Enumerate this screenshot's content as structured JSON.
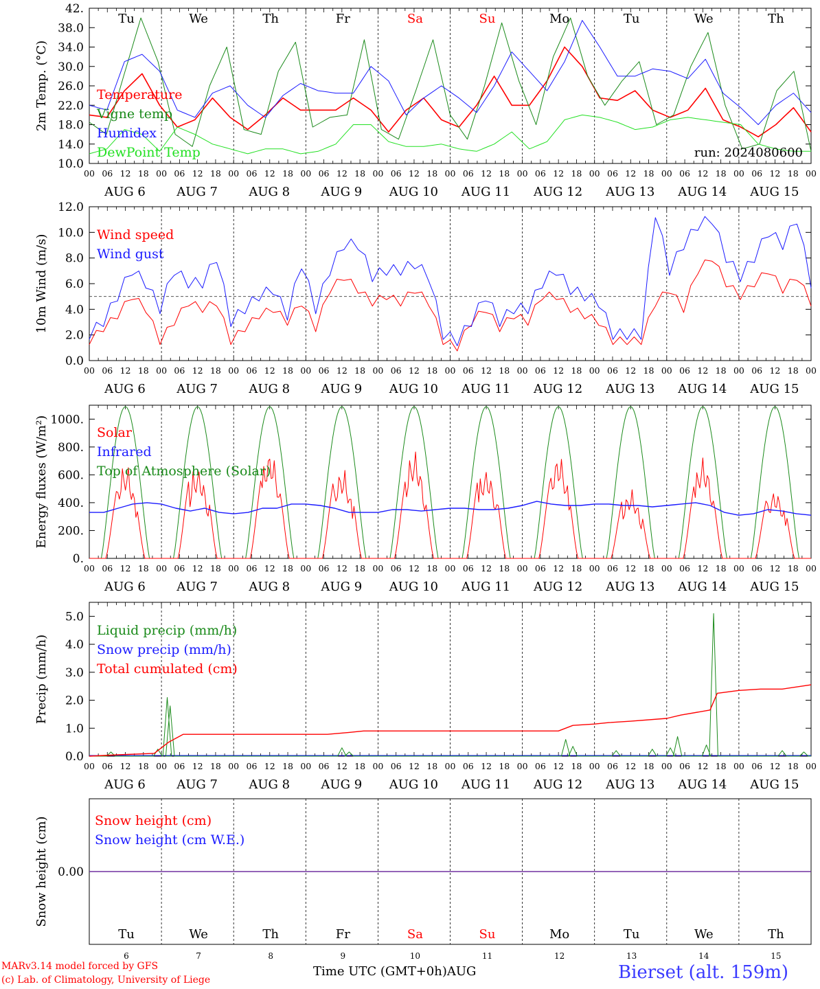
{
  "footer": {
    "credit_model": "MARv3.14 model forced by GFS",
    "credit_lab": "(c) Lab. of Climatology, University of Liege",
    "x_axis_title": "Time UTC (GMT+0h)AUG",
    "station": "Bierset (alt. 159m)"
  },
  "colors": {
    "red": "#ff0000",
    "dark_green": "#1a8a1a",
    "blue": "#1a1aff",
    "light_green": "#22e022",
    "purple": "#7030a0",
    "day_weekend": "#ff0000"
  },
  "chart_data": [
    {
      "type": "line",
      "ylabel": "2m Temp. (°C)",
      "ylim": [
        10,
        42
      ],
      "yticks": [
        "42.",
        "38.0",
        "34.0",
        "30.0",
        "26.0",
        "22.0",
        "18.0",
        "14.0",
        "10.0"
      ],
      "run": "run: 2024080600",
      "days": [
        "Tu",
        "We",
        "Th",
        "Fr",
        "Sa",
        "Su",
        "Mo",
        "Tu",
        "We",
        "Th"
      ],
      "date_labels": [
        "AUG  6",
        "AUG  7",
        "AUG  8",
        "AUG  9",
        "AUG 10",
        "AUG 11",
        "AUG 12",
        "AUG 13",
        "AUG 14",
        "AUG 15"
      ],
      "hour_labels": [
        "00",
        "06",
        "12",
        "18"
      ],
      "x_hours_step": 6,
      "series": [
        {
          "name": "Temperature",
          "color": "#ff0000",
          "width": 1.6,
          "values": [
            20,
            19.5,
            25,
            28.5,
            22,
            17.5,
            19,
            23.5,
            19.5,
            17,
            20,
            23.5,
            21,
            21,
            21,
            23.5,
            21,
            16.5,
            21,
            23.5,
            19,
            17.5,
            22,
            28,
            22,
            22,
            27,
            34,
            30,
            23.5,
            23,
            25,
            21,
            19.5,
            21,
            25.5,
            19,
            17.5,
            15.5,
            18,
            21.5,
            16.5
          ]
        },
        {
          "name": "Vigne temp",
          "color": "#1a8a1a",
          "width": 1,
          "values": [
            18.5,
            16,
            28,
            40,
            31,
            16,
            13.5,
            26,
            34,
            17,
            16,
            29,
            35,
            17.5,
            19.5,
            20,
            35.5,
            17,
            15,
            25,
            35.5,
            20,
            15,
            26,
            39,
            27,
            18,
            32,
            40,
            28,
            22,
            27,
            31,
            18,
            20,
            30,
            37,
            22,
            13,
            14,
            25,
            29,
            12.5
          ]
        },
        {
          "name": "Humidex",
          "color": "#1a1aff",
          "width": 1,
          "values": [
            22,
            21,
            31,
            32.5,
            29,
            21,
            19.5,
            24.5,
            26,
            22,
            19.5,
            24,
            26.5,
            25,
            24.5,
            24.5,
            30,
            27,
            20,
            23.5,
            26,
            23.5,
            20.5,
            26,
            33,
            29,
            25,
            31,
            39.5,
            34,
            28,
            28,
            29.5,
            29,
            27.5,
            31.5,
            24.5,
            21.5,
            18,
            22,
            24.5,
            20.5
          ]
        },
        {
          "name": "DewPoint Temp",
          "color": "#22e022",
          "width": 1,
          "values": [
            12,
            13,
            17,
            16,
            12.5,
            17.5,
            16,
            14,
            13,
            12,
            13,
            13,
            12,
            12.5,
            14,
            18,
            18,
            14.5,
            13.5,
            13.5,
            14,
            13,
            12.5,
            14,
            16.5,
            13,
            14.5,
            19,
            20,
            19.5,
            18.5,
            17,
            17.5,
            19,
            19.5,
            19,
            18.5,
            18,
            14,
            13,
            12.5,
            12.5
          ]
        }
      ]
    },
    {
      "type": "line",
      "ylabel": "10m Wind (m/s)",
      "ylim": [
        0,
        12
      ],
      "yticks": [
        "12.0",
        "10.0",
        "8.0",
        "6.0",
        "4.0",
        "2.0",
        "0.0"
      ],
      "reference_line": 5,
      "series": [
        {
          "name": "Wind speed",
          "color": "#ff0000",
          "width": 1,
          "values": [
            1.5,
            2.5,
            3.5,
            5,
            4,
            1.5,
            3,
            4.5,
            4,
            4.5,
            1.5,
            2.5,
            3.5,
            4,
            3,
            4.5,
            2.5,
            5.5,
            6.5,
            5.5,
            4.5,
            5,
            4.5,
            5.5,
            4.5,
            1.5,
            1,
            3,
            4,
            2.5,
            3.5,
            3,
            5,
            5,
            4,
            3.5,
            3,
            1.5,
            1.5,
            1.5,
            4.5,
            5.5,
            4,
            7,
            8,
            6,
            5,
            6,
            7,
            5.5,
            6.5,
            4.5
          ]
        },
        {
          "name": "Wind gust",
          "color": "#1a1aff",
          "width": 1,
          "values": [
            2,
            3,
            5,
            7,
            6,
            4,
            7,
            6,
            6,
            8,
            3,
            4,
            5,
            5.5,
            3.5,
            7.5,
            4,
            7,
            9,
            9,
            6.5,
            7,
            7,
            7.5,
            6.5,
            2,
            1.5,
            3,
            5,
            3,
            4,
            4,
            6,
            7,
            5.5,
            5,
            4.5,
            2,
            2,
            2,
            11.5,
            7,
            9,
            10.5,
            11,
            8,
            6.5,
            8,
            10,
            9,
            11,
            6
          ]
        }
      ]
    },
    {
      "type": "line",
      "ylabel": "Energy fluxes (W/m²)",
      "ylim": [
        0,
        1100
      ],
      "yticks": [
        "1000.",
        "800.",
        "600.",
        "400.",
        "200.",
        "0."
      ],
      "series": [
        {
          "name": "Solar",
          "color": "#ff0000",
          "width": 1,
          "peaks": [
            700,
            800,
            810,
            780,
            800,
            790,
            780,
            590,
            750,
            600
          ]
        },
        {
          "name": "Infrared",
          "color": "#1a1aff",
          "width": 1.4,
          "values": [
            330,
            330,
            360,
            390,
            400,
            390,
            360,
            340,
            360,
            330,
            320,
            330,
            360,
            360,
            390,
            390,
            380,
            360,
            330,
            330,
            330,
            350,
            350,
            340,
            350,
            360,
            360,
            350,
            350,
            360,
            380,
            410,
            390,
            380,
            380,
            390,
            390,
            380,
            380,
            370,
            380,
            390,
            400,
            380,
            330,
            310,
            320,
            350,
            340,
            320,
            310
          ]
        },
        {
          "name": "Top of Atmosphere (Solar)",
          "color": "#1a8a1a",
          "width": 1,
          "peak": 1090
        }
      ]
    },
    {
      "type": "line",
      "ylabel": "Precip (mm/h)",
      "ylim": [
        0,
        5.5
      ],
      "yticks": [
        "5.0",
        "4.0",
        "3.0",
        "2.0",
        "1.0",
        "0.0"
      ],
      "series": [
        {
          "name": "Liquid precip (mm/h)",
          "color": "#1a8a1a",
          "width": 1,
          "spikes": [
            [
              0.3,
              0.15
            ],
            [
              0.95,
              0.25
            ],
            [
              1.08,
              2.1
            ],
            [
              1.12,
              1.8
            ],
            [
              3.5,
              0.3
            ],
            [
              3.6,
              0.15
            ],
            [
              6.6,
              0.6
            ],
            [
              6.7,
              0.35
            ],
            [
              7.3,
              0.2
            ],
            [
              7.8,
              0.25
            ],
            [
              8.05,
              0.3
            ],
            [
              8.15,
              0.7
            ],
            [
              8.55,
              0.4
            ],
            [
              8.65,
              5.1
            ],
            [
              9.6,
              0.2
            ],
            [
              9.9,
              0.15
            ]
          ]
        },
        {
          "name": "Snow precip (mm/h)",
          "color": "#1a1aff",
          "width": 1,
          "values": [
            0
          ]
        },
        {
          "name": "Total cumulated (cm)",
          "color": "#ff0000",
          "width": 1,
          "points": [
            [
              0,
              0
            ],
            [
              0.4,
              0.05
            ],
            [
              0.9,
              0.1
            ],
            [
              1.1,
              0.5
            ],
            [
              1.3,
              0.78
            ],
            [
              3.3,
              0.78
            ],
            [
              3.6,
              0.85
            ],
            [
              3.8,
              0.9
            ],
            [
              6.5,
              0.9
            ],
            [
              6.7,
              1.1
            ],
            [
              7.0,
              1.15
            ],
            [
              7.2,
              1.2
            ],
            [
              7.5,
              1.25
            ],
            [
              8.0,
              1.35
            ],
            [
              8.2,
              1.47
            ],
            [
              8.6,
              1.65
            ],
            [
              8.7,
              2.25
            ],
            [
              9.0,
              2.35
            ],
            [
              9.3,
              2.4
            ],
            [
              9.6,
              2.4
            ],
            [
              10.0,
              2.55
            ]
          ]
        }
      ]
    },
    {
      "type": "line",
      "ylabel": "Snow height (cm)",
      "yticks": [
        "0.00"
      ],
      "x_day_numbers": [
        "6",
        "7",
        "8",
        "9",
        "10",
        "11",
        "12",
        "13",
        "14",
        "15"
      ],
      "series": [
        {
          "name": "Snow height (cm)",
          "color": "#ff0000",
          "width": 1,
          "values": [
            0
          ]
        },
        {
          "name": "Snow height (cm W.E.)",
          "color": "#1a1aff",
          "width": 1,
          "values": [
            0
          ]
        }
      ]
    }
  ]
}
